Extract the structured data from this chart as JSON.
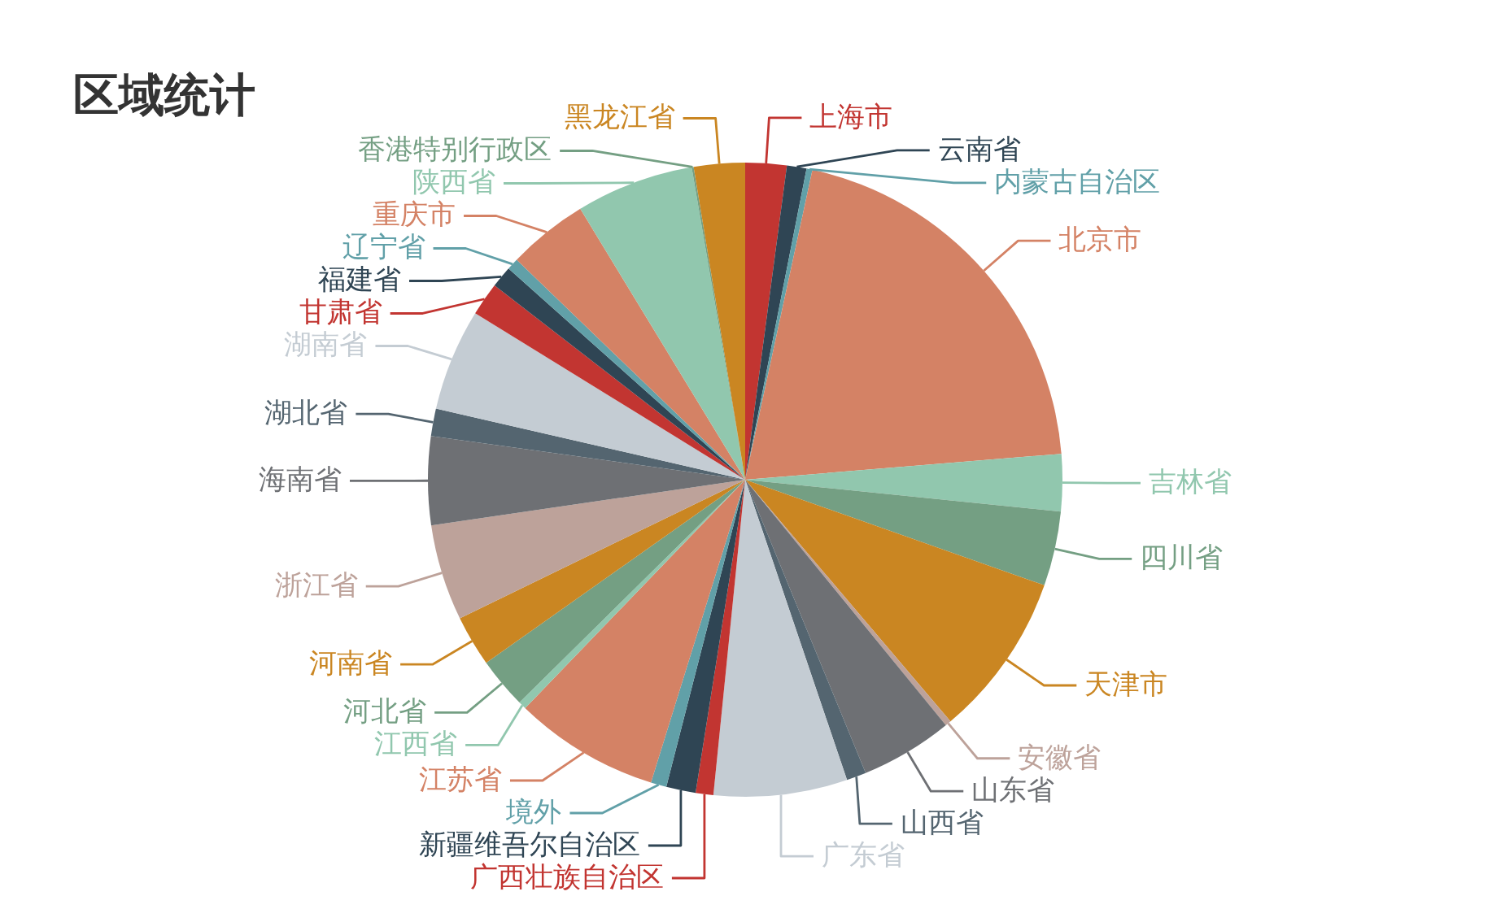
{
  "chart_data": {
    "type": "pie",
    "title": "区域统计",
    "categories": [
      "上海市",
      "云南省",
      "内蒙古自治区",
      "北京市",
      "吉林省",
      "四川省",
      "天津市",
      "安徽省",
      "山东省",
      "山西省",
      "广东省",
      "广西壮族自治区",
      "新疆维吾尔自治区",
      "境外",
      "江苏省",
      "江西省",
      "河北省",
      "河南省",
      "浙江省",
      "海南省",
      "湖北省",
      "湖南省",
      "甘肃省",
      "福建省",
      "辽宁省",
      "重庆市",
      "陕西省",
      "香港特别行政区",
      "黑龙江省"
    ],
    "values": [
      2.1,
      1.0,
      0.3,
      20.3,
      2.9,
      3.8,
      8.4,
      0.3,
      4.7,
      1.0,
      6.8,
      0.9,
      1.5,
      0.8,
      7.4,
      0.4,
      2.6,
      2.6,
      4.9,
      4.5,
      1.4,
      5.2,
      1.7,
      1.1,
      0.6,
      4.1,
      6.0,
      0.1,
      2.6
    ],
    "colors": [
      "#c23531",
      "#2f4554",
      "#61a0a8",
      "#d48265",
      "#91c7ae",
      "#749f83",
      "#ca8622",
      "#bda29a",
      "#6e7074",
      "#546570",
      "#c4ccd3",
      "#c23531",
      "#2f4554",
      "#61a0a8",
      "#d48265",
      "#91c7ae",
      "#749f83",
      "#ca8622",
      "#bda29a",
      "#6e7074",
      "#546570",
      "#c4ccd3",
      "#c23531",
      "#2f4554",
      "#61a0a8",
      "#d48265",
      "#91c7ae",
      "#749f83",
      "#ca8622"
    ]
  }
}
